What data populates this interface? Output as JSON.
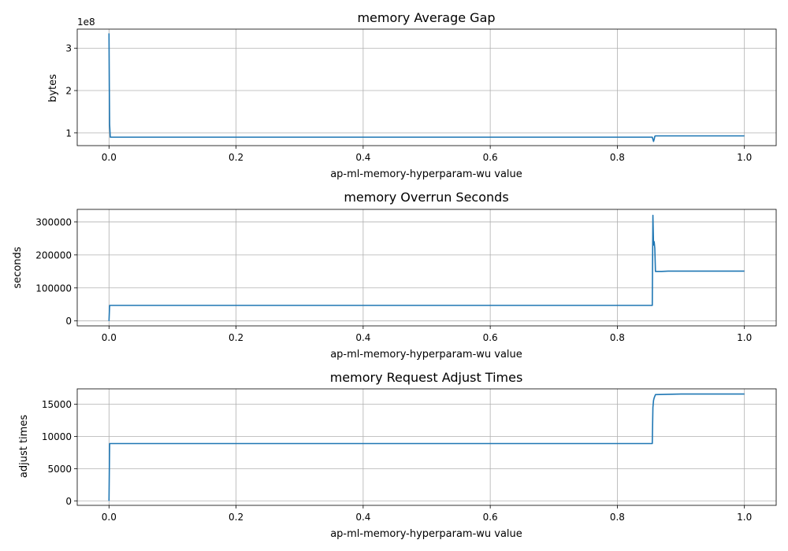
{
  "chart_data": [
    {
      "type": "line",
      "title": "memory Average Gap",
      "xlabel": "ap-ml-memory-hyperparam-wu value",
      "ylabel": "bytes",
      "offset_text": "1e8",
      "xlim": [
        -0.05,
        1.05
      ],
      "ylim": [
        0.7,
        3.45
      ],
      "xticks": [
        0.0,
        0.2,
        0.4,
        0.6,
        0.8,
        1.0
      ],
      "xtick_labels": [
        "0.0",
        "0.2",
        "0.4",
        "0.6",
        "0.8",
        "1.0"
      ],
      "yticks": [
        1,
        2,
        3
      ],
      "ytick_labels": [
        "1",
        "2",
        "3"
      ],
      "grid": true,
      "color": "#1f77b4",
      "x": [
        0.0,
        0.0005,
        0.001,
        0.002,
        0.01,
        0.2,
        0.4,
        0.6,
        0.8,
        0.855,
        0.857,
        0.858,
        0.859,
        0.86,
        0.865,
        0.88,
        0.9,
        1.0
      ],
      "y": [
        3.35,
        2.1,
        1.2,
        0.9,
        0.9,
        0.9,
        0.9,
        0.9,
        0.9,
        0.9,
        0.8,
        0.85,
        0.92,
        0.93,
        0.93,
        0.93,
        0.93,
        0.93
      ]
    },
    {
      "type": "line",
      "title": "memory Overrun Seconds",
      "xlabel": "ap-ml-memory-hyperparam-wu value",
      "ylabel": "seconds",
      "xlim": [
        -0.05,
        1.05
      ],
      "ylim": [
        -15000,
        338000
      ],
      "xticks": [
        0.0,
        0.2,
        0.4,
        0.6,
        0.8,
        1.0
      ],
      "xtick_labels": [
        "0.0",
        "0.2",
        "0.4",
        "0.6",
        "0.8",
        "1.0"
      ],
      "yticks": [
        0,
        100000,
        200000,
        300000
      ],
      "ytick_labels": [
        "0",
        "100000",
        "200000",
        "300000"
      ],
      "grid": true,
      "color": "#1f77b4",
      "x": [
        0.0,
        0.001,
        0.002,
        0.2,
        0.4,
        0.6,
        0.8,
        0.855,
        0.856,
        0.857,
        0.858,
        0.859,
        0.86,
        0.87,
        0.88,
        0.9,
        1.0
      ],
      "y": [
        0,
        47000,
        47000,
        47000,
        47000,
        47000,
        47000,
        47000,
        320000,
        230000,
        240000,
        220000,
        150000,
        150000,
        151000,
        151000,
        151000
      ]
    },
    {
      "type": "line",
      "title": "memory Request Adjust Times",
      "xlabel": "ap-ml-memory-hyperparam-wu value",
      "ylabel": "adjust times",
      "xlim": [
        -0.05,
        1.05
      ],
      "ylim": [
        -700,
        17400
      ],
      "xticks": [
        0.0,
        0.2,
        0.4,
        0.6,
        0.8,
        1.0
      ],
      "xtick_labels": [
        "0.0",
        "0.2",
        "0.4",
        "0.6",
        "0.8",
        "1.0"
      ],
      "yticks": [
        0,
        5000,
        10000,
        15000
      ],
      "ytick_labels": [
        "0",
        "5000",
        "10000",
        "15000"
      ],
      "grid": true,
      "color": "#1f77b4",
      "x": [
        0.0,
        0.001,
        0.002,
        0.2,
        0.4,
        0.6,
        0.8,
        0.855,
        0.856,
        0.857,
        0.858,
        0.86,
        0.88,
        0.9,
        1.0
      ],
      "y": [
        0,
        8900,
        8900,
        8900,
        8900,
        8900,
        8900,
        8900,
        14500,
        15600,
        16000,
        16500,
        16550,
        16600,
        16600
      ]
    }
  ]
}
